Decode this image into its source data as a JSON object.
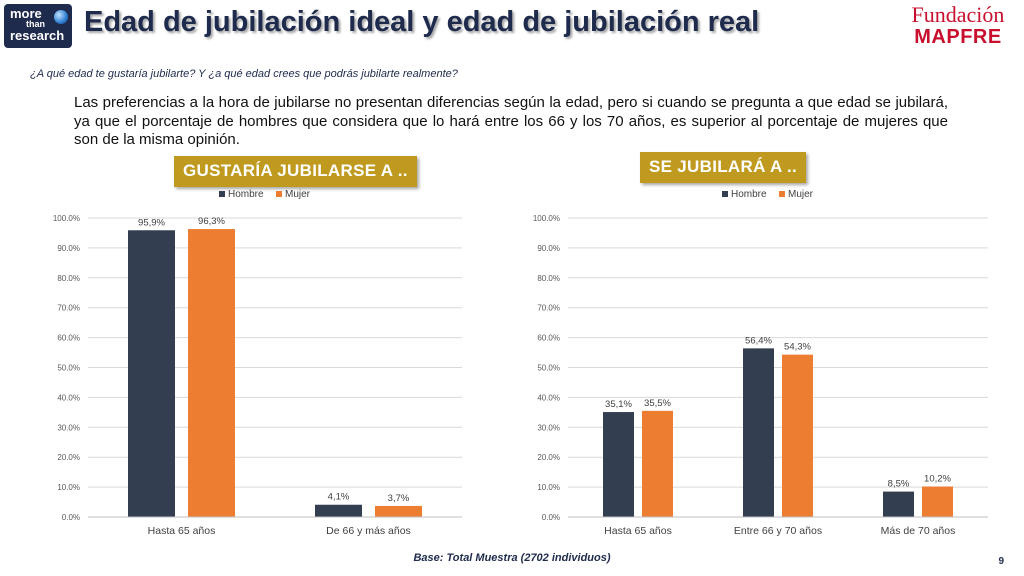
{
  "header": {
    "logo_left": [
      "more",
      "than",
      "research"
    ],
    "title": "Edad de jubilación ideal y edad de jubilación real",
    "logo_right": [
      "Fundación",
      "MAPFRE"
    ]
  },
  "question": "¿A qué edad te gustaría jubilarte? Y ¿a qué edad crees que podrás jubilarte realmente?",
  "description": "Las preferencias a la hora de jubilarse no presentan diferencias según la edad, pero si cuando se pregunta a que edad se jubilará, ya que el porcentaje de hombres que considera que lo hará entre los 66 y los 70 años, es superior al porcentaje de mujeres que son de la misma opinión.",
  "badges": [
    "GUSTARÍA JUBILARSE A ..",
    "SE JUBILARÁ A .."
  ],
  "colors": {
    "hombre": "#333f50",
    "mujer": "#ed7d31",
    "badge": "#c09a1e",
    "grid": "#d9d9d9"
  },
  "chart_data": [
    {
      "type": "bar",
      "categories": [
        "Hasta 65 años",
        "De 66 y más años"
      ],
      "series": [
        {
          "name": "Hombre",
          "values": [
            95.9,
            4.1
          ],
          "labels": [
            "95,9%",
            "4,1%"
          ]
        },
        {
          "name": "Mujer",
          "values": [
            96.3,
            3.7
          ],
          "labels": [
            "96,3%",
            "3,7%"
          ]
        }
      ],
      "ylim": [
        0,
        100
      ],
      "yticks": [
        "0.0%",
        "10.0%",
        "20.0%",
        "30.0%",
        "40.0%",
        "50.0%",
        "60.0%",
        "70.0%",
        "80.0%",
        "90.0%",
        "100.0%"
      ],
      "legend": "top-center",
      "grid": true
    },
    {
      "type": "bar",
      "categories": [
        "Hasta 65 años",
        "Entre 66 y 70 años",
        "Más de 70 años"
      ],
      "series": [
        {
          "name": "Hombre",
          "values": [
            35.1,
            56.4,
            8.5
          ],
          "labels": [
            "35,1%",
            "56,4%",
            "8,5%"
          ]
        },
        {
          "name": "Mujer",
          "values": [
            35.5,
            54.3,
            10.2
          ],
          "labels": [
            "35,5%",
            "54,3%",
            "10,2%"
          ]
        }
      ],
      "ylim": [
        0,
        100
      ],
      "yticks": [
        "0.0%",
        "10.0%",
        "20.0%",
        "30.0%",
        "40.0%",
        "50.0%",
        "60.0%",
        "70.0%",
        "80.0%",
        "90.0%",
        "100.0%"
      ],
      "legend": "top-center",
      "grid": true
    }
  ],
  "footer": "Base: Total Muestra (2702 individuos)",
  "page_number": "9"
}
